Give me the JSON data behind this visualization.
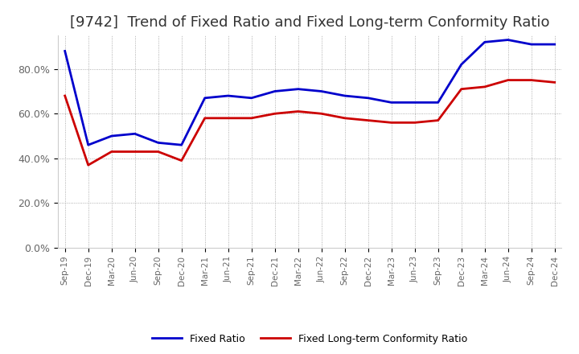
{
  "title": "[9742]  Trend of Fixed Ratio and Fixed Long-term Conformity Ratio",
  "x_labels": [
    "Sep-19",
    "Dec-19",
    "Mar-20",
    "Jun-20",
    "Sep-20",
    "Dec-20",
    "Mar-21",
    "Jun-21",
    "Sep-21",
    "Dec-21",
    "Mar-22",
    "Jun-22",
    "Sep-22",
    "Dec-22",
    "Mar-23",
    "Jun-23",
    "Sep-23",
    "Dec-23",
    "Mar-24",
    "Jun-24",
    "Sep-24",
    "Dec-24"
  ],
  "fixed_ratio": [
    88,
    46,
    50,
    51,
    47,
    46,
    67,
    68,
    67,
    70,
    71,
    70,
    68,
    67,
    65,
    65,
    65,
    82,
    92,
    93,
    91,
    91
  ],
  "fixed_lt_ratio": [
    68,
    37,
    43,
    43,
    43,
    39,
    58,
    58,
    58,
    60,
    61,
    60,
    58,
    57,
    56,
    56,
    57,
    71,
    72,
    75,
    75,
    74
  ],
  "ylim": [
    0,
    95
  ],
  "yticks": [
    0,
    20,
    40,
    60,
    80
  ],
  "line_color_fixed": "#0000cc",
  "line_color_lt": "#cc0000",
  "background_color": "#ffffff",
  "grid_color": "#999999",
  "title_fontsize": 13,
  "title_color": "#333333",
  "tick_color": "#666666",
  "legend_labels": [
    "Fixed Ratio",
    "Fixed Long-term Conformity Ratio"
  ]
}
